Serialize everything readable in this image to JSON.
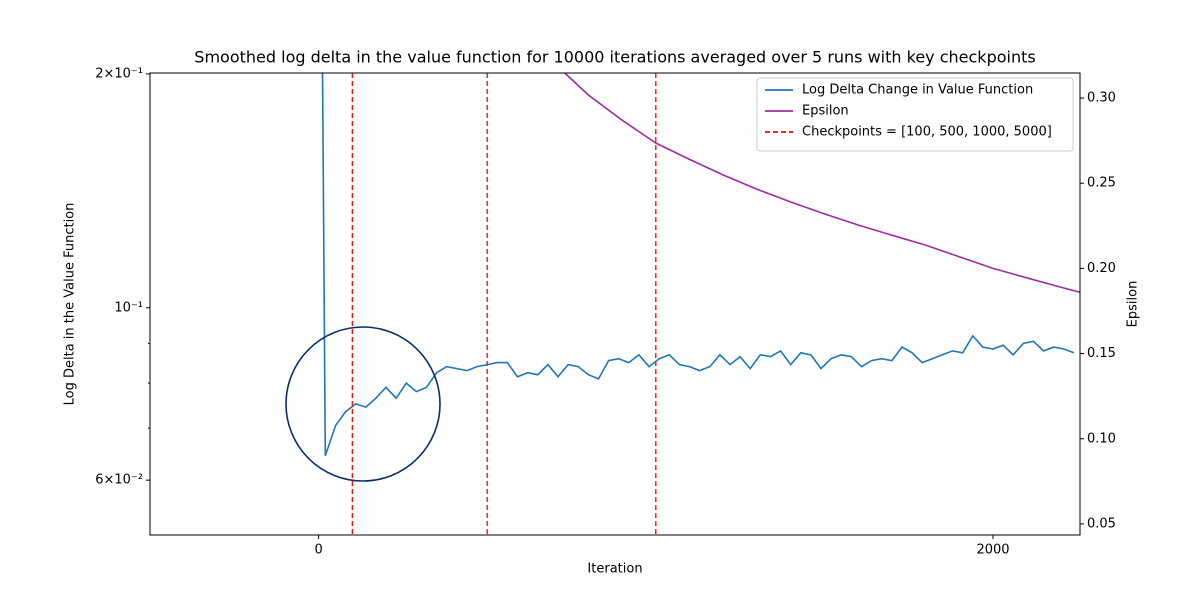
{
  "chart_data": {
    "type": "line",
    "title": "Smoothed log delta in the value function for 10000 iterations averaged over 5 runs with key checkpoints",
    "xlabel": "Iteration",
    "ylabel": "Log Delta in the Value Function",
    "y2label": "Epsilon",
    "xlim": [
      -500,
      2258
    ],
    "xticks": [
      0,
      2000
    ],
    "yscale": "log",
    "ylim": [
      0.051,
      0.2005
    ],
    "yticks": [
      {
        "value": 0.06,
        "label": "6×10⁻²"
      },
      {
        "value": 0.1,
        "label": "10⁻¹"
      },
      {
        "value": 0.2,
        "label": "2×10⁻¹"
      }
    ],
    "yminorticks": [
      0.07,
      0.08,
      0.09
    ],
    "y2lim": [
      0.0435,
      0.3147
    ],
    "y2ticks": [
      0.05,
      {
        "value": 0.1,
        "label": "0.10"
      },
      0.15,
      {
        "value": 0.2,
        "label": "0.20"
      },
      0.25,
      {
        "value": 0.3,
        "label": "0.30"
      }
    ],
    "legend": "upper right",
    "series": [
      {
        "name": "Log Delta Change in Value Function",
        "color": "#1f77b4",
        "x": [
          10,
          20,
          50,
          80,
          110,
          140,
          170,
          200,
          230,
          260,
          290,
          320,
          350,
          380,
          410,
          440,
          470,
          500,
          530,
          560,
          590,
          620,
          650,
          680,
          710,
          740,
          770,
          800,
          830,
          860,
          890,
          920,
          950,
          980,
          1010,
          1040,
          1070,
          1100,
          1130,
          1160,
          1190,
          1220,
          1250,
          1280,
          1310,
          1340,
          1370,
          1400,
          1430,
          1460,
          1490,
          1520,
          1550,
          1580,
          1610,
          1640,
          1670,
          1700,
          1730,
          1760,
          1790,
          1820,
          1850,
          1880,
          1910,
          1940,
          1970,
          2000,
          2030,
          2060,
          2090,
          2120,
          2150,
          2180,
          2210,
          2240
        ],
        "values": [
          0.25,
          0.0645,
          0.0705,
          0.0735,
          0.0752,
          0.0745,
          0.0765,
          0.079,
          0.0765,
          0.08,
          0.078,
          0.079,
          0.0825,
          0.084,
          0.0835,
          0.083,
          0.084,
          0.0845,
          0.085,
          0.085,
          0.0815,
          0.0825,
          0.082,
          0.0845,
          0.0815,
          0.0845,
          0.084,
          0.082,
          0.081,
          0.0855,
          0.086,
          0.085,
          0.087,
          0.084,
          0.086,
          0.087,
          0.0845,
          0.084,
          0.083,
          0.084,
          0.087,
          0.0845,
          0.0865,
          0.0835,
          0.087,
          0.0865,
          0.088,
          0.0845,
          0.0875,
          0.087,
          0.0835,
          0.086,
          0.087,
          0.0865,
          0.084,
          0.0855,
          0.086,
          0.0855,
          0.089,
          0.0875,
          0.085,
          0.086,
          0.087,
          0.088,
          0.0875,
          0.092,
          0.089,
          0.0885,
          0.0895,
          0.087,
          0.09,
          0.0905,
          0.088,
          0.089,
          0.0885,
          0.0875
        ]
      },
      {
        "name": "Epsilon",
        "color": "#9b2f9e",
        "axis": "y2",
        "x": [
          730,
          800,
          900,
          1000,
          1100,
          1200,
          1300,
          1400,
          1500,
          1600,
          1700,
          1800,
          1900,
          2000,
          2100,
          2200,
          2258
        ],
        "values": [
          0.3147,
          0.3018,
          0.287,
          0.2736,
          0.264,
          0.2548,
          0.2465,
          0.239,
          0.232,
          0.2255,
          0.2195,
          0.2137,
          0.2068,
          0.2,
          0.1945,
          0.189,
          0.186
        ]
      }
    ],
    "vlines": {
      "name": "Checkpoints = [100, 500, 1000, 5000]",
      "color": "#ff0000",
      "style": "dashed",
      "values": [
        100,
        500,
        1000,
        5000
      ]
    }
  }
}
